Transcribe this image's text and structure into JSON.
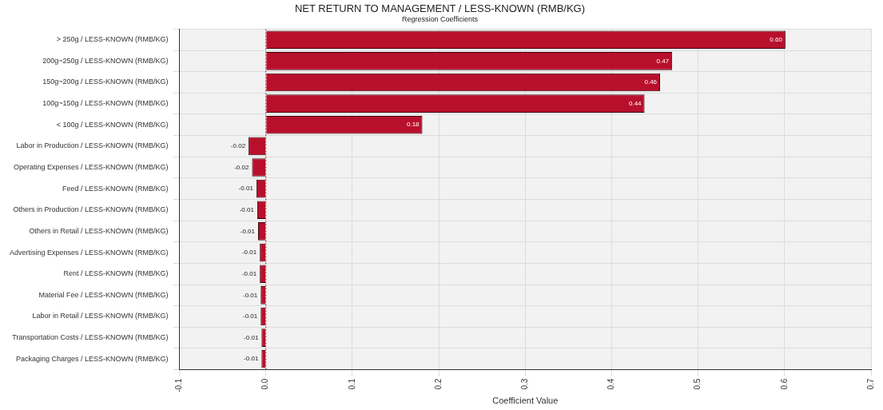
{
  "chart_data": {
    "type": "bar",
    "orientation": "horizontal",
    "title": "NET RETURN TO MANAGEMENT / LESS-KNOWN (RMB/KG)",
    "subtitle": "Regression Coefficients",
    "xlabel": "Coefficient Value",
    "categories": [
      "> 250g / LESS-KNOWN (RMB/KG)",
      "200g~250g / LESS-KNOWN (RMB/KG)",
      "150g~200g / LESS-KNOWN (RMB/KG)",
      "100g~150g / LESS-KNOWN (RMB/KG)",
      "< 100g / LESS-KNOWN (RMB/KG)",
      "Labor in Production / LESS-KNOWN (RMB/KG)",
      "Operating Expenses / LESS-KNOWN (RMB/KG)",
      "Feed / LESS-KNOWN (RMB/KG)",
      "Others in Production / LESS-KNOWN (RMB/KG)",
      "Others in Retail / LESS-KNOWN (RMB/KG)",
      "Advertising Expenses / LESS-KNOWN (RMB/KG)",
      "Rent / LESS-KNOWN (RMB/KG)",
      "Material Fee / LESS-KNOWN (RMB/KG)",
      "Labor in Retail / LESS-KNOWN (RMB/KG)",
      "Transportation Costs / LESS-KNOWN (RMB/KG)",
      "Packaging Charges / LESS-KNOWN (RMB/KG)"
    ],
    "values": [
      0.601,
      0.47,
      0.456,
      0.438,
      0.181,
      -0.02,
      -0.016,
      -0.011,
      -0.01,
      -0.009,
      -0.007,
      -0.007,
      -0.006,
      -0.006,
      -0.005,
      -0.005
    ],
    "value_labels": [
      "0.60",
      "0.47",
      "0.46",
      "0.44",
      "0.18",
      "-0.02",
      "-0.02",
      "-0.01",
      "-0.01",
      "-0.01",
      "-0.01",
      "-0.01",
      "-0.01",
      "-0.01",
      "-0.01",
      "-0.01"
    ],
    "color": "#b8102c",
    "xlim": [
      -0.1,
      0.7
    ],
    "xticks": [
      -0.1,
      {
        "value": 0,
        "label": "0.0"
      },
      0.1,
      0.2,
      0.3,
      0.4,
      0.5,
      0.6,
      0.7
    ],
    "ref_lines": [
      {
        "axis": "x",
        "value": 0,
        "color": "#cc2222",
        "line_style": "dotted"
      }
    ],
    "grid": true,
    "legend": false
  }
}
